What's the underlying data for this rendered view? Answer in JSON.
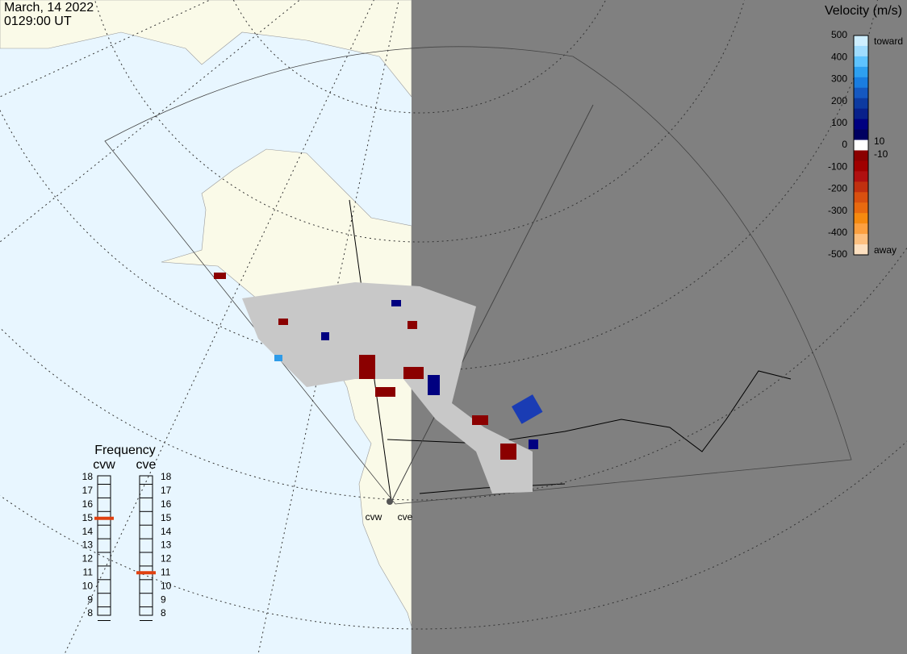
{
  "header": {
    "date": "March, 14 2022",
    "time": "0129:00 UT"
  },
  "velocity_scale": {
    "title": "Velocity (m/s)",
    "ticks": [
      500,
      400,
      300,
      200,
      100,
      0,
      -100,
      -200,
      -300,
      -400,
      -500
    ],
    "toward": "toward",
    "away": "away",
    "inner_ticks": [
      10,
      -10
    ]
  },
  "frequency": {
    "title": "Frequency",
    "ticks": [
      18,
      17,
      16,
      15,
      14,
      13,
      12,
      11,
      10,
      9,
      8
    ],
    "radars": [
      {
        "name": "cvw",
        "value": 15
      },
      {
        "name": "cve",
        "value": 11
      }
    ]
  },
  "map_labels": [
    "cvw",
    "cve"
  ]
}
